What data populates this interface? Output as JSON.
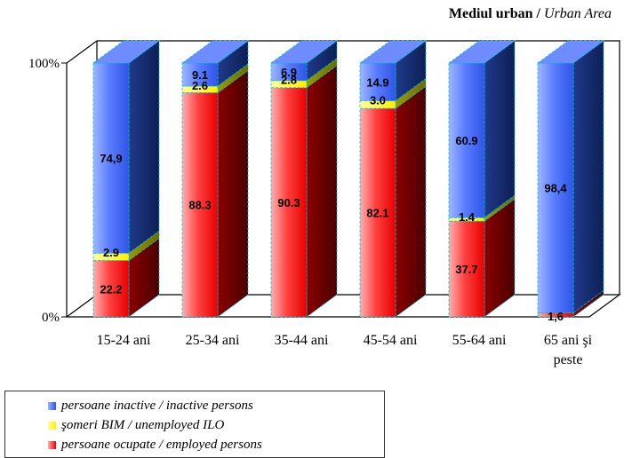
{
  "chart_data": {
    "type": "bar",
    "stacked": true,
    "three_d": true,
    "title": "Mediul urban /",
    "title_italic": "Urban Area",
    "categories": [
      "15-24 ani",
      "25-34 ani",
      "35-44 ani",
      "45-54 ani",
      "55-64 ani",
      "65 ani şi peste"
    ],
    "category_lines": [
      [
        "15-24 ani"
      ],
      [
        "25-34 ani"
      ],
      [
        "35-44 ani"
      ],
      [
        "45-54 ani"
      ],
      [
        "55-64 ani"
      ],
      [
        "65 ani şi",
        "peste"
      ]
    ],
    "series": [
      {
        "key": "employed",
        "name": "persoane ocupate / employed persons",
        "color": "#ff0000",
        "values": [
          22.2,
          88.3,
          90.3,
          82.1,
          37.7,
          1.6
        ],
        "labels": [
          "22.2",
          "88.3",
          "90.3",
          "82.1",
          "37.7",
          "1,6"
        ]
      },
      {
        "key": "unemployed",
        "name": "şomeri BIM / unemployed ILO",
        "color": "#ffff00",
        "values": [
          2.9,
          2.6,
          2.8,
          3.0,
          1.4,
          0
        ],
        "labels": [
          "2.9",
          "2.6",
          "2.8",
          "3.0",
          "1.4",
          ""
        ]
      },
      {
        "key": "inactive",
        "name": "persoane inactive / inactive persons",
        "color": "#3366ff",
        "values": [
          74.9,
          9.1,
          6.9,
          14.9,
          60.9,
          98.4
        ],
        "labels": [
          "74,9",
          "9.1",
          "6.9",
          "14.9",
          "60.9",
          "98,4"
        ]
      }
    ],
    "yticks": [
      "0%",
      "100%"
    ],
    "ylim": [
      0,
      100
    ],
    "legend_position": "bottom-left"
  },
  "legend": {
    "inactive": "persoane inactive / inactive persons",
    "unemployed": "şomeri BIM / unemployed ILO",
    "employed": "persoane ocupate / employed persons"
  }
}
